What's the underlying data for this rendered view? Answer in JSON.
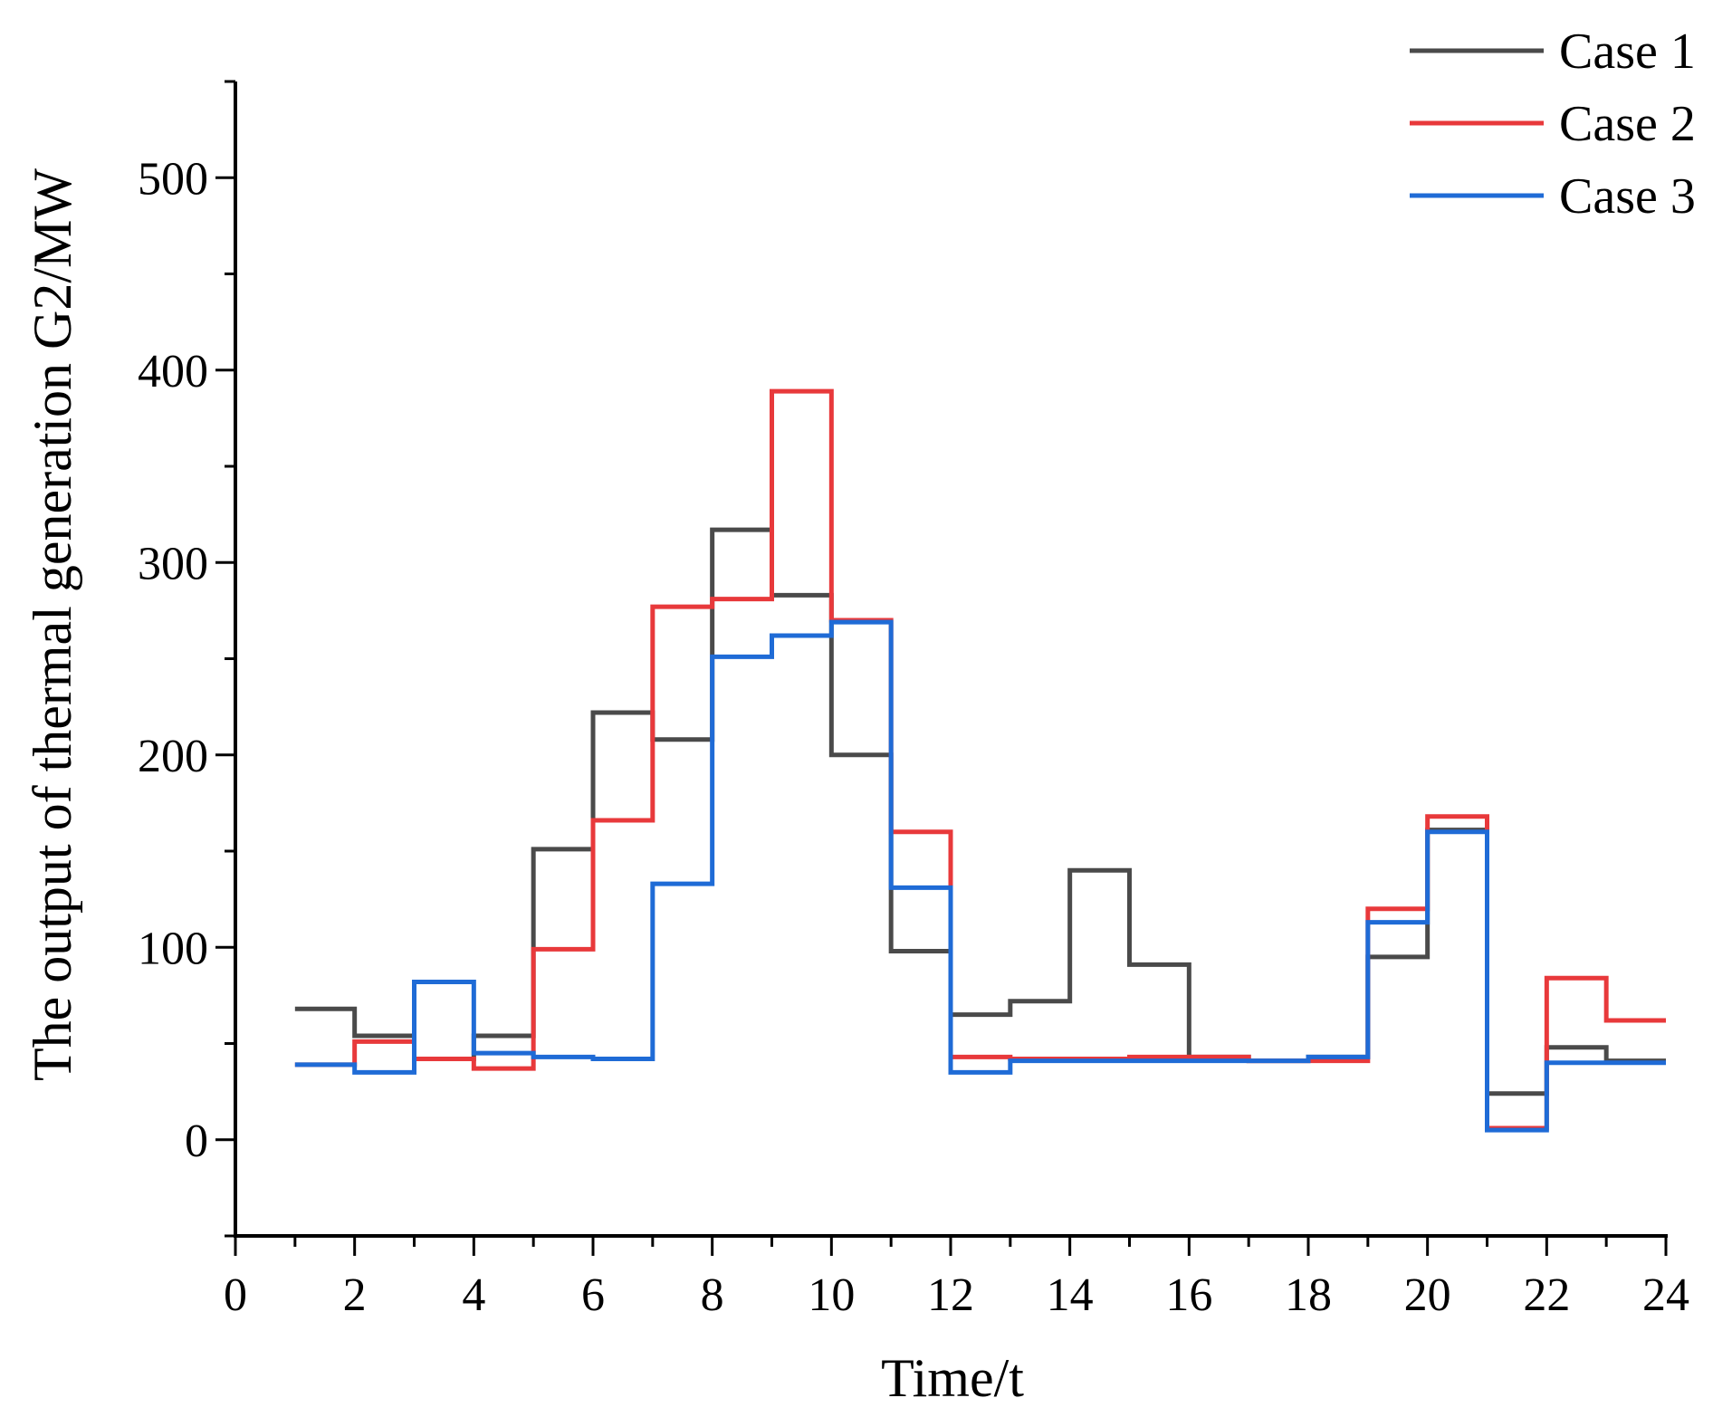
{
  "chart_data": {
    "type": "line",
    "step": "post",
    "title": "",
    "xlabel": "Time/t",
    "ylabel": "The output of thermal generation G2/MW",
    "xlim": [
      0,
      24
    ],
    "ylim": [
      -50,
      550
    ],
    "xticks": [
      0,
      2,
      4,
      6,
      8,
      10,
      12,
      14,
      16,
      18,
      20,
      22,
      24
    ],
    "xtick_labels": [
      "0",
      "2",
      "4",
      "6",
      "8",
      "10",
      "12",
      "14",
      "16",
      "18",
      "20",
      "22",
      "24"
    ],
    "yticks": [
      0,
      100,
      200,
      300,
      400,
      500
    ],
    "ytick_labels": [
      "0",
      "100",
      "200",
      "300",
      "400",
      "500"
    ],
    "legend_position": "top-right",
    "x": [
      1,
      2,
      3,
      4,
      5,
      6,
      7,
      8,
      9,
      10,
      11,
      12,
      13,
      14,
      15,
      16,
      17,
      18,
      19,
      20,
      21,
      22,
      23,
      24
    ],
    "series": [
      {
        "name": "Case 1",
        "color": "#4a4a4a",
        "values": [
          68,
          54,
          42,
          54,
          151,
          222,
          208,
          317,
          283,
          200,
          98,
          65,
          72,
          140,
          91,
          43,
          41,
          43,
          95,
          161,
          24,
          48,
          41,
          41
        ]
      },
      {
        "name": "Case 2",
        "color": "#e8393b",
        "values": [
          39,
          51,
          42,
          37,
          99,
          166,
          277,
          281,
          389,
          270,
          160,
          43,
          42,
          42,
          43,
          43,
          41,
          41,
          120,
          168,
          6,
          84,
          62,
          62
        ]
      },
      {
        "name": "Case 3",
        "color": "#1f6bd6",
        "values": [
          39,
          35,
          82,
          45,
          43,
          42,
          133,
          251,
          262,
          269,
          131,
          35,
          41,
          41,
          41,
          41,
          41,
          43,
          113,
          160,
          5,
          40,
          40,
          40
        ]
      }
    ]
  }
}
